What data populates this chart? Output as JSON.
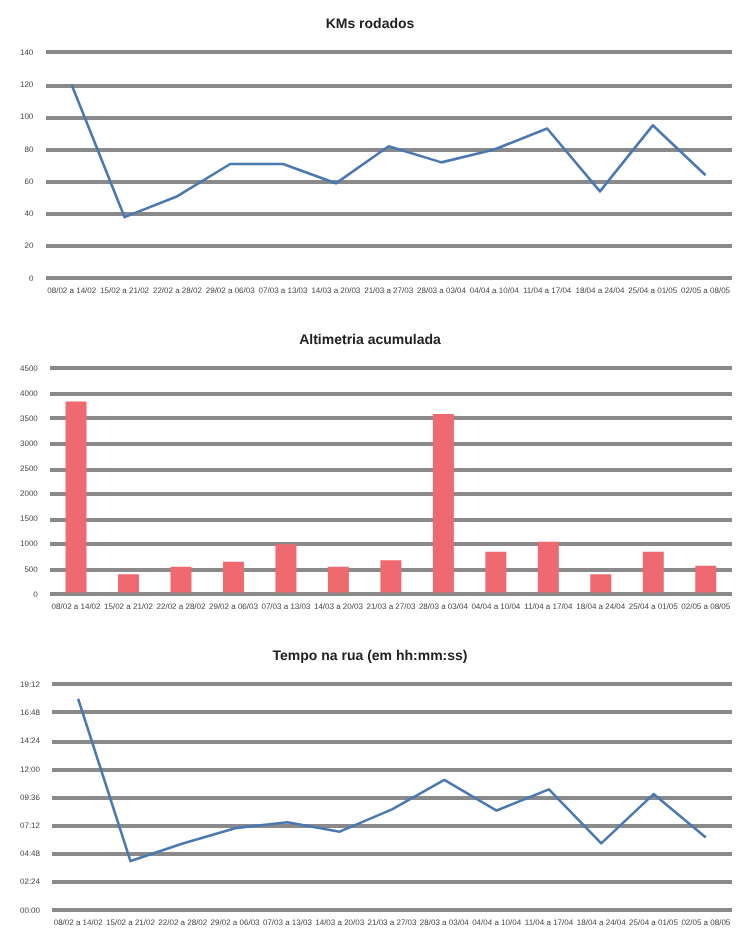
{
  "chart_data": [
    {
      "type": "line",
      "title": "KMs rodados",
      "categories": [
        "08/02 a 14/02",
        "15/02 a 21/02",
        "22/02 a 28/02",
        "29/02 a 06/03",
        "07/03 a 13/03",
        "14/03 a 20/03",
        "21/03 a 27/03",
        "28/03 a 03/04",
        "04/04 a 10/04",
        "11/04 a 17/04",
        "18/04 a 24/04",
        "25/04 a 01/05",
        "02/05 a 08/05"
      ],
      "series": [
        {
          "color": "#4a78b0",
          "values": [
            120,
            38,
            51,
            71,
            71,
            59,
            82,
            72,
            80,
            93,
            54,
            95,
            64
          ]
        }
      ],
      "ylim": [
        0,
        140
      ],
      "yticks": [
        0,
        20,
        40,
        60,
        80,
        100,
        120,
        140
      ],
      "grid": "y",
      "legend": false,
      "marker": "none"
    },
    {
      "type": "bar",
      "title": "Altimetria acumulada",
      "categories": [
        "08/02 a 14/02",
        "15/02 a 21/02",
        "22/02 a 28/02",
        "29/02 a 06/03",
        "07/03 a 13/03",
        "14/03 a 20/03",
        "21/03 a 27/03",
        "28/03 a 03/04",
        "04/04 a 10/04",
        "11/04 a 17/04",
        "18/04 a 24/04",
        "25/04 a 01/05",
        "02/05 a 08/05"
      ],
      "series": [
        {
          "color": "#ee6a70",
          "values": [
            3850,
            400,
            550,
            650,
            1000,
            550,
            680,
            3600,
            850,
            1050,
            400,
            850,
            570
          ]
        }
      ],
      "ylim": [
        0,
        4500
      ],
      "yticks": [
        0,
        500,
        1000,
        1500,
        2000,
        2500,
        3000,
        3500,
        4000,
        4500
      ],
      "grid": "y",
      "legend": false
    },
    {
      "type": "line",
      "title": "Tempo na rua (em hh:mm:ss)",
      "categories": [
        "08/02 a 14/02",
        "15/02 a 21/02",
        "22/02 a 28/02",
        "29/02 a 06/03",
        "07/03 a 13/03",
        "14/03 a 20/03",
        "21/03 a 27/03",
        "28/03 a 03/04",
        "04/04 a 10/04",
        "11/04 a 17/04",
        "18/04 a 24/04",
        "25/04 a 01/05",
        "02/05 a 08/05"
      ],
      "series": [
        {
          "color": "#4a78b0",
          "values": [
            18.0,
            4.2,
            5.7,
            7.0,
            7.5,
            6.7,
            8.6,
            11.1,
            8.5,
            10.3,
            5.7,
            9.9,
            6.2
          ]
        }
      ],
      "ylim": [
        0,
        19.2
      ],
      "yticks": [
        {
          "value": 0,
          "label": "00:00"
        },
        {
          "value": 2.4,
          "label": "02:24"
        },
        {
          "value": 4.8,
          "label": "04:48"
        },
        {
          "value": 7.2,
          "label": "07:12"
        },
        {
          "value": 9.6,
          "label": "09:36"
        },
        {
          "value": 12,
          "label": "12:00"
        },
        {
          "value": 14.4,
          "label": "14:24"
        },
        {
          "value": 16.8,
          "label": "16:48"
        },
        {
          "value": 19.2,
          "label": "19:12"
        }
      ],
      "grid": "y",
      "legend": false,
      "marker": "none"
    }
  ]
}
